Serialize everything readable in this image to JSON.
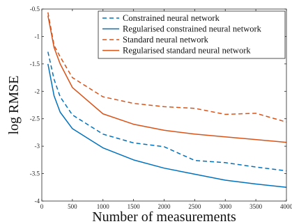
{
  "chart_data": {
    "type": "line",
    "xlabel": "Number of measurements",
    "ylabel": "log RMSE",
    "xlim": [
      0,
      4000
    ],
    "ylim": [
      -4,
      -0.5
    ],
    "xticks": [
      {
        "value": 0,
        "label": "0"
      },
      {
        "value": 500,
        "label": "500"
      },
      {
        "value": 1000,
        "label": "1000"
      },
      {
        "value": 1500,
        "label": "1500"
      },
      {
        "value": 2000,
        "label": "2000"
      },
      {
        "value": 2500,
        "label": "2500"
      },
      {
        "value": 3000,
        "label": "3000"
      },
      {
        "value": 3500,
        "label": "3500"
      },
      {
        "value": 4000,
        "label": "4000"
      }
    ],
    "yticks": [
      {
        "value": -0.5,
        "label": "-0.5"
      },
      {
        "value": -1,
        "label": "-1"
      },
      {
        "value": -1.5,
        "label": "-1.5"
      },
      {
        "value": -2,
        "label": "-2"
      },
      {
        "value": -2.5,
        "label": "-2.5"
      },
      {
        "value": -3,
        "label": "-3"
      },
      {
        "value": -3.5,
        "label": "-3.5"
      },
      {
        "value": -4,
        "label": "-4"
      }
    ],
    "grid": false,
    "legend_position": "top-right",
    "series": [
      {
        "name": "Constrained neural network",
        "color": "#0072BD",
        "dash": "dashed",
        "x": [
          100,
          200,
          300,
          500,
          1000,
          1500,
          2000,
          2500,
          3000,
          3500,
          4000
        ],
        "y": [
          -1.28,
          -1.78,
          -2.1,
          -2.43,
          -2.78,
          -2.94,
          -3.01,
          -3.26,
          -3.3,
          -3.38,
          -3.45
        ]
      },
      {
        "name": "Regularised constrained neural network",
        "color": "#0072BD",
        "dash": "solid",
        "x": [
          100,
          200,
          300,
          500,
          1000,
          1500,
          2000,
          2500,
          3000,
          3500,
          4000
        ],
        "y": [
          -1.5,
          -2.08,
          -2.38,
          -2.68,
          -3.03,
          -3.25,
          -3.4,
          -3.51,
          -3.62,
          -3.69,
          -3.75
        ]
      },
      {
        "name": "Standard neural network",
        "color": "#D95319",
        "dash": "dashed",
        "x": [
          100,
          200,
          300,
          500,
          1000,
          1500,
          2000,
          2500,
          3000,
          3500,
          4000
        ],
        "y": [
          -0.56,
          -1.16,
          -1.37,
          -1.75,
          -2.1,
          -2.22,
          -2.28,
          -2.31,
          -2.42,
          -2.4,
          -2.56
        ]
      },
      {
        "name": "Regularised standard neural network",
        "color": "#D95319",
        "dash": "solid",
        "x": [
          100,
          200,
          300,
          500,
          1000,
          1500,
          2000,
          2500,
          3000,
          3500,
          4000
        ],
        "y": [
          -0.62,
          -1.2,
          -1.5,
          -1.93,
          -2.41,
          -2.6,
          -2.71,
          -2.78,
          -2.83,
          -2.88,
          -2.93
        ]
      }
    ]
  }
}
